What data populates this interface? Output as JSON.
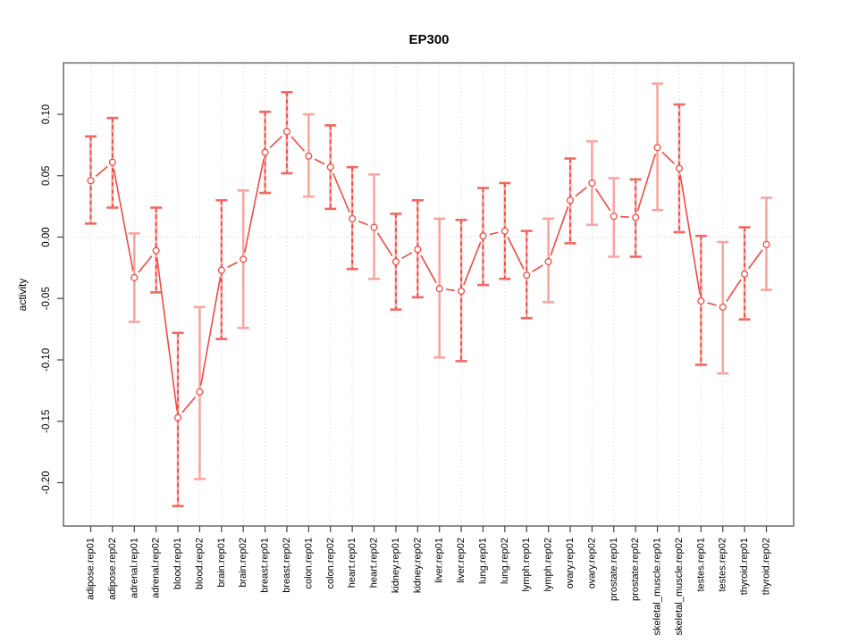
{
  "figure": {
    "title": "EP300",
    "y_axis_label": "activity"
  },
  "chart_data": {
    "type": "line",
    "subtype": "points-with-error-bars",
    "title": "EP300",
    "xlabel": "",
    "ylabel": "activity",
    "legend": "none",
    "grid": "vertical-dotted-gridlines-plus-dotted-zero-line",
    "categories": [
      "adipose.rep01",
      "adipose.rep02",
      "adrenal.rep01",
      "adrenal.rep02",
      "blood.rep01",
      "blood.rep02",
      "brain.rep01",
      "brain.rep02",
      "breast.rep01",
      "breast.rep02",
      "colon.rep01",
      "colon.rep02",
      "heart.rep01",
      "heart.rep02",
      "kidney.rep01",
      "kidney.rep02",
      "liver.rep01",
      "liver.rep02",
      "lung.rep01",
      "lung.rep02",
      "lymph.rep01",
      "lymph.rep02",
      "ovary.rep01",
      "ovary.rep02",
      "prostate.rep01",
      "prostate.rep02",
      "skeletal_muscle.rep01",
      "skeletal_muscle.rep02",
      "testes.rep01",
      "testes.rep02",
      "thyroid.rep01",
      "thyroid.rep02"
    ],
    "series": [
      {
        "name": "activity",
        "values": [
          0.046,
          0.061,
          -0.033,
          -0.011,
          -0.147,
          -0.126,
          -0.027,
          -0.018,
          0.069,
          0.086,
          0.066,
          0.057,
          0.015,
          0.008,
          -0.02,
          -0.01,
          -0.042,
          -0.044,
          0.001,
          0.005,
          -0.031,
          -0.02,
          0.03,
          0.044,
          0.017,
          0.016,
          0.073,
          0.056,
          -0.052,
          -0.057,
          -0.03,
          -0.006
        ],
        "ci_low": [
          0.011,
          0.024,
          -0.069,
          -0.045,
          -0.219,
          -0.197,
          -0.083,
          -0.074,
          0.036,
          0.052,
          0.033,
          0.023,
          -0.026,
          -0.034,
          -0.059,
          -0.049,
          -0.098,
          -0.101,
          -0.039,
          -0.034,
          -0.066,
          -0.053,
          -0.005,
          0.01,
          -0.016,
          -0.016,
          0.022,
          0.004,
          -0.104,
          -0.111,
          -0.067,
          -0.043
        ],
        "ci_high": [
          0.082,
          0.097,
          0.003,
          0.024,
          -0.078,
          -0.057,
          0.03,
          0.038,
          0.102,
          0.118,
          0.1,
          0.091,
          0.057,
          0.051,
          0.019,
          0.03,
          0.015,
          0.014,
          0.04,
          0.044,
          0.005,
          0.015,
          0.064,
          0.078,
          0.048,
          0.047,
          0.125,
          0.108,
          0.001,
          -0.004,
          0.008,
          0.032
        ]
      }
    ],
    "error_bar_dashed": [
      true,
      true,
      false,
      true,
      true,
      false,
      true,
      false,
      true,
      true,
      false,
      true,
      true,
      false,
      true,
      true,
      false,
      true,
      true,
      true,
      true,
      false,
      true,
      false,
      false,
      true,
      false,
      true,
      true,
      false,
      true,
      false
    ],
    "y_ticks": [
      0.1,
      0.05,
      0.0,
      -0.05,
      -0.1,
      -0.15,
      -0.2
    ],
    "y_tick_labels": [
      "0.10",
      "0.05",
      "0.00",
      "-0.05",
      "-0.10",
      "-0.15",
      "-0.20"
    ],
    "ylim": [
      -0.235,
      0.142
    ],
    "colors": {
      "point_line": "#ee4b43",
      "error_bar_solid": "#f9a6a0",
      "error_bar_dashed_overlay": "#ee4b43",
      "error_bar_cap_bright": "#f26860",
      "grid": "#cfcfcf",
      "box": "#606060",
      "tick": "#444444",
      "text": "#000000"
    }
  }
}
